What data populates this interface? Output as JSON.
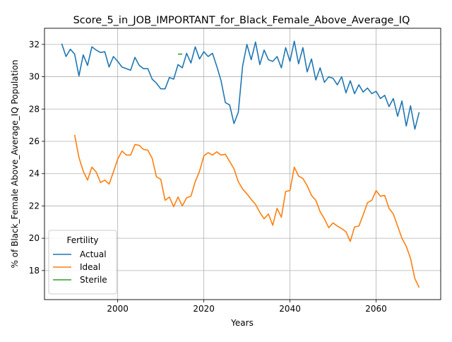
{
  "chart_data": {
    "type": "line",
    "title": "Score_5_in_JOB_IMPORTANT_for_Black_Female_Above_Average_IQ",
    "xlabel": "Years",
    "ylabel": "% of Black_Female Above_Average_IQ Population",
    "xlim": [
      1983,
      2075
    ],
    "ylim": [
      16.2,
      33.0
    ],
    "xticks": [
      2000,
      2020,
      2040,
      2060
    ],
    "yticks": [
      18,
      20,
      22,
      24,
      26,
      28,
      30,
      32
    ],
    "grid": true,
    "legend": {
      "title": "Fertility",
      "placement": "lower-left"
    },
    "series": [
      {
        "name": "Actual",
        "color": "#1f77b4",
        "x": [
          1987,
          1988,
          1989,
          1990,
          1991,
          1992,
          1993,
          1994,
          1995,
          1996,
          1997,
          1998,
          1999,
          2000,
          2001,
          2002,
          2003,
          2004,
          2005,
          2006,
          2007,
          2008,
          2009,
          2010,
          2011,
          2012,
          2013,
          2014,
          2015,
          2016,
          2017,
          2018,
          2019,
          2020,
          2021,
          2022,
          2023,
          2024,
          2025,
          2026,
          2027,
          2028,
          2029,
          2030,
          2031,
          2032,
          2033,
          2034,
          2035,
          2036,
          2037,
          2038,
          2039,
          2040,
          2041,
          2042,
          2043,
          2044,
          2045,
          2046,
          2047,
          2048,
          2049,
          2050,
          2051,
          2052,
          2053,
          2054,
          2055,
          2056,
          2057,
          2058,
          2059,
          2060,
          2061,
          2062,
          2063,
          2064,
          2065,
          2066,
          2067,
          2068,
          2069,
          2070
        ],
        "values": [
          32.05,
          31.25,
          31.7,
          31.4,
          30.05,
          31.35,
          30.7,
          31.85,
          31.65,
          31.5,
          31.55,
          30.6,
          31.25,
          30.95,
          30.6,
          30.5,
          30.4,
          31.2,
          30.7,
          30.5,
          30.5,
          29.85,
          29.6,
          29.25,
          29.25,
          29.95,
          29.85,
          30.75,
          30.55,
          31.45,
          30.85,
          31.85,
          31.1,
          31.55,
          31.25,
          31.45,
          30.65,
          29.75,
          28.4,
          28.25,
          27.1,
          27.8,
          30.65,
          32.0,
          31.05,
          32.15,
          30.75,
          31.65,
          31.05,
          30.95,
          31.25,
          30.55,
          31.8,
          30.95,
          32.2,
          30.8,
          31.8,
          30.3,
          31.1,
          29.8,
          30.55,
          29.65,
          30.0,
          29.9,
          29.5,
          30.0,
          29.0,
          29.75,
          28.95,
          29.5,
          29.05,
          29.3,
          28.95,
          29.1,
          28.65,
          28.85,
          28.15,
          28.65,
          27.55,
          28.5,
          26.95,
          28.2,
          26.75,
          27.8
        ]
      },
      {
        "name": "Ideal",
        "color": "#ff7f0e",
        "x": [
          1990,
          1991,
          1992,
          1993,
          1994,
          1995,
          1996,
          1997,
          1998,
          1999,
          2000,
          2001,
          2002,
          2003,
          2004,
          2005,
          2006,
          2007,
          2008,
          2009,
          2010,
          2011,
          2012,
          2013,
          2014,
          2015,
          2016,
          2017,
          2018,
          2019,
          2020,
          2021,
          2022,
          2023,
          2024,
          2025,
          2026,
          2027,
          2028,
          2029,
          2030,
          2031,
          2032,
          2033,
          2034,
          2035,
          2036,
          2037,
          2038,
          2039,
          2040,
          2041,
          2042,
          2043,
          2044,
          2045,
          2046,
          2047,
          2048,
          2049,
          2050,
          2051,
          2052,
          2053,
          2054,
          2055,
          2056,
          2057,
          2058,
          2059,
          2060,
          2061,
          2062,
          2063,
          2064,
          2065,
          2066,
          2067,
          2068,
          2069,
          2070
        ],
        "values": [
          26.4,
          25.0,
          24.15,
          23.6,
          24.4,
          24.1,
          23.45,
          23.6,
          23.35,
          24.1,
          24.9,
          25.4,
          25.15,
          25.15,
          25.8,
          25.75,
          25.5,
          25.45,
          24.95,
          23.8,
          23.65,
          22.35,
          22.55,
          21.95,
          22.55,
          22.0,
          22.5,
          22.6,
          23.5,
          24.15,
          25.1,
          25.3,
          25.15,
          25.35,
          25.15,
          25.2,
          24.75,
          24.3,
          23.5,
          23.05,
          22.75,
          22.4,
          22.1,
          21.6,
          21.2,
          21.5,
          20.8,
          21.85,
          21.3,
          22.9,
          22.95,
          24.4,
          23.85,
          23.7,
          23.25,
          22.65,
          22.35,
          21.65,
          21.2,
          20.65,
          20.95,
          20.75,
          20.6,
          20.4,
          19.8,
          20.7,
          20.75,
          21.45,
          22.2,
          22.35,
          22.95,
          22.6,
          22.65,
          21.85,
          21.5,
          20.75,
          20.0,
          19.5,
          18.75,
          17.5,
          16.95
        ]
      },
      {
        "name": "Sterile",
        "color": "#2ca02c",
        "x": [
          2014,
          2015
        ],
        "values": [
          31.4,
          31.4
        ]
      }
    ]
  }
}
